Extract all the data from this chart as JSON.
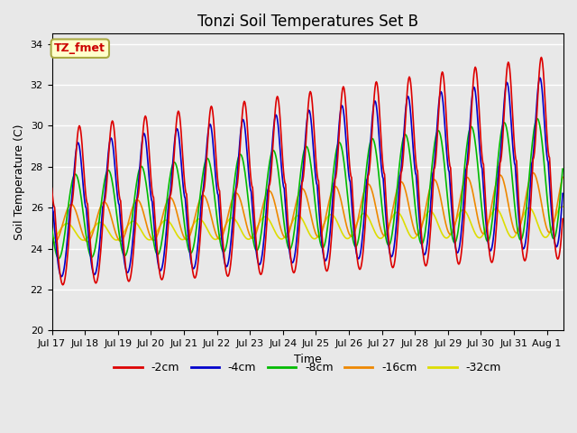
{
  "title": "Tonzi Soil Temperatures Set B",
  "xlabel": "Time",
  "ylabel": "Soil Temperature (C)",
  "ylim": [
    20,
    34.5
  ],
  "annotation_text": "TZ_fmet",
  "annotation_bg": "#ffffcc",
  "annotation_border": "#aaaa00",
  "annotation_fg": "#cc0000",
  "plot_bg": "#e8e8e8",
  "fig_bg": "#e8e8e8",
  "legend_labels": [
    "-2cm",
    "-4cm",
    "-8cm",
    "-16cm",
    "-32cm"
  ],
  "legend_colors": [
    "#dd0000",
    "#0000cc",
    "#00bb00",
    "#ee8800",
    "#dddd00"
  ],
  "line_width": 1.2,
  "tick_labels": [
    "Jul 17",
    "Jul 18",
    "Jul 19",
    "Jul 20",
    "Jul 21",
    "Jul 22",
    "Jul 23",
    "Jul 24",
    "Jul 25",
    "Jul 26",
    "Jul 27",
    "Jul 28",
    "Jul 29",
    "Jul 30",
    "Jul 31",
    "Aug 1"
  ],
  "grid_color": "#ffffff",
  "title_fontsize": 12
}
